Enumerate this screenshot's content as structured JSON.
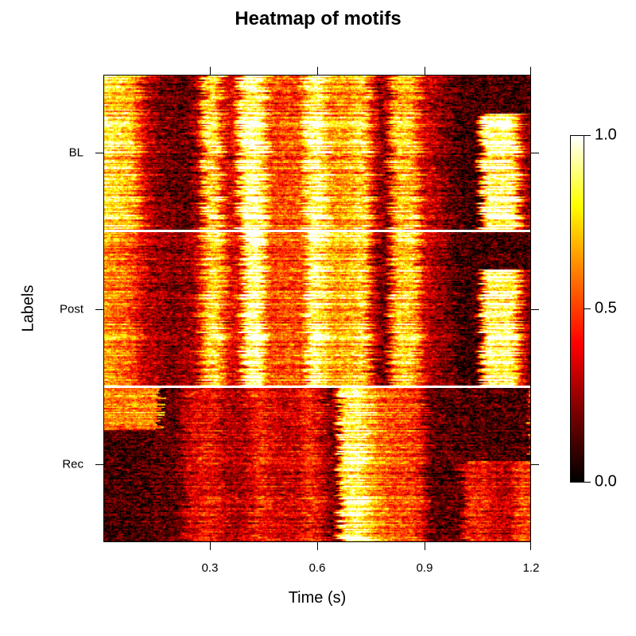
{
  "title": "Heatmap of motifs",
  "chart_data": {
    "type": "heatmap",
    "title": "Heatmap of motifs",
    "xlabel": "Time (s)",
    "ylabel": "Labels",
    "xlim": [
      0,
      1.2
    ],
    "x_ticks": [
      "0.3",
      "0.6",
      "0.9",
      "1.2"
    ],
    "x_tick_values": [
      0.3,
      0.6,
      0.9,
      1.2
    ],
    "y_categories": [
      "BL",
      "Post",
      "Rec"
    ],
    "colorbar": {
      "range": [
        0.0,
        1.0
      ],
      "ticks": [
        "0.0",
        "0.5",
        "1.0"
      ],
      "colormap": "heat (black-red-orange-yellow-white)",
      "stops": [
        "#000000",
        "#7a0000",
        "#ff0000",
        "#ff7a00",
        "#ffff00",
        "#ffffff"
      ]
    },
    "blocks": [
      {
        "label": "BL",
        "rows": 120,
        "profile_description": "bright onset 0-0.1 s, dark 0.15-0.28, bright 0.3, white 0.4-0.45, red 0.5, white 0.6, orange-yellow 0.62-0.72, dark 0.75, yellow 0.82-0.88, dark 0.93-1.05 (top rows), white 1.05-1.17 (lower rows)",
        "profile": [
          [
            0.0,
            0.85
          ],
          [
            0.08,
            0.75
          ],
          [
            0.12,
            0.35
          ],
          [
            0.16,
            0.2
          ],
          [
            0.24,
            0.15
          ],
          [
            0.27,
            0.3
          ],
          [
            0.29,
            0.85
          ],
          [
            0.32,
            0.8
          ],
          [
            0.34,
            0.4
          ],
          [
            0.37,
            0.35
          ],
          [
            0.39,
            0.95
          ],
          [
            0.43,
            1.0
          ],
          [
            0.45,
            0.85
          ],
          [
            0.47,
            0.5
          ],
          [
            0.52,
            0.55
          ],
          [
            0.55,
            0.5
          ],
          [
            0.58,
            0.95
          ],
          [
            0.61,
            0.95
          ],
          [
            0.64,
            0.65
          ],
          [
            0.7,
            0.7
          ],
          [
            0.73,
            0.85
          ],
          [
            0.76,
            0.4
          ],
          [
            0.79,
            0.15
          ],
          [
            0.82,
            0.75
          ],
          [
            0.87,
            0.75
          ],
          [
            0.9,
            0.35
          ],
          [
            0.95,
            0.25
          ],
          [
            1.0,
            0.1
          ],
          [
            1.05,
            0.1
          ],
          [
            1.07,
            0.95
          ],
          [
            1.15,
            0.95
          ],
          [
            1.18,
            0.3
          ],
          [
            1.2,
            0.2
          ]
        ],
        "late_onset_row_fraction": 0.25
      },
      {
        "label": "Post",
        "rows": 120,
        "profile": [
          [
            0.0,
            0.7
          ],
          [
            0.08,
            0.55
          ],
          [
            0.12,
            0.3
          ],
          [
            0.2,
            0.22
          ],
          [
            0.26,
            0.3
          ],
          [
            0.29,
            0.8
          ],
          [
            0.32,
            0.85
          ],
          [
            0.35,
            0.4
          ],
          [
            0.38,
            0.4
          ],
          [
            0.4,
            1.0
          ],
          [
            0.44,
            1.0
          ],
          [
            0.46,
            0.55
          ],
          [
            0.52,
            0.55
          ],
          [
            0.56,
            0.55
          ],
          [
            0.58,
            1.0
          ],
          [
            0.61,
            0.9
          ],
          [
            0.64,
            0.7
          ],
          [
            0.7,
            0.75
          ],
          [
            0.73,
            0.85
          ],
          [
            0.76,
            0.3
          ],
          [
            0.79,
            0.15
          ],
          [
            0.82,
            0.8
          ],
          [
            0.87,
            0.8
          ],
          [
            0.9,
            0.35
          ],
          [
            0.95,
            0.25
          ],
          [
            1.0,
            0.1
          ],
          [
            1.05,
            0.1
          ],
          [
            1.07,
            0.95
          ],
          [
            1.15,
            0.95
          ],
          [
            1.18,
            0.3
          ],
          [
            1.2,
            0.2
          ]
        ],
        "late_onset_row_fraction": 0.25
      },
      {
        "label": "Rec",
        "rows": 120,
        "profile": [
          [
            0.0,
            0.25
          ],
          [
            0.1,
            0.25
          ],
          [
            0.16,
            0.15
          ],
          [
            0.2,
            0.15
          ],
          [
            0.24,
            0.35
          ],
          [
            0.3,
            0.45
          ],
          [
            0.34,
            0.3
          ],
          [
            0.4,
            0.3
          ],
          [
            0.44,
            0.5
          ],
          [
            0.48,
            0.35
          ],
          [
            0.55,
            0.35
          ],
          [
            0.58,
            0.5
          ],
          [
            0.62,
            0.3
          ],
          [
            0.65,
            0.15
          ],
          [
            0.67,
            0.9
          ],
          [
            0.72,
            0.95
          ],
          [
            0.75,
            0.75
          ],
          [
            0.78,
            0.6
          ],
          [
            0.81,
            0.55
          ],
          [
            0.84,
            0.55
          ],
          [
            0.88,
            0.5
          ],
          [
            0.92,
            0.15
          ],
          [
            0.97,
            0.15
          ],
          [
            1.0,
            0.15
          ],
          [
            1.02,
            0.45
          ],
          [
            1.06,
            0.45
          ],
          [
            1.09,
            0.35
          ],
          [
            1.14,
            0.3
          ],
          [
            1.17,
            0.55
          ],
          [
            1.2,
            0.5
          ]
        ],
        "early_burst_row_fraction": 0.28,
        "late_onset_row_fraction": 0.48
      }
    ]
  },
  "x_axis": {
    "title": "Time (s)",
    "ticks": [
      {
        "label": "0.3",
        "value": 0.3
      },
      {
        "label": "0.6",
        "value": 0.6
      },
      {
        "label": "0.9",
        "value": 0.9
      },
      {
        "label": "1.2",
        "value": 1.2
      }
    ]
  },
  "y_axis": {
    "title": "Labels",
    "ticks": [
      {
        "label": "BL"
      },
      {
        "label": "Post"
      },
      {
        "label": "Rec"
      }
    ]
  },
  "colorbar": {
    "ticks": [
      {
        "label": "1.0"
      },
      {
        "label": "0.5"
      },
      {
        "label": "0.0"
      }
    ]
  }
}
